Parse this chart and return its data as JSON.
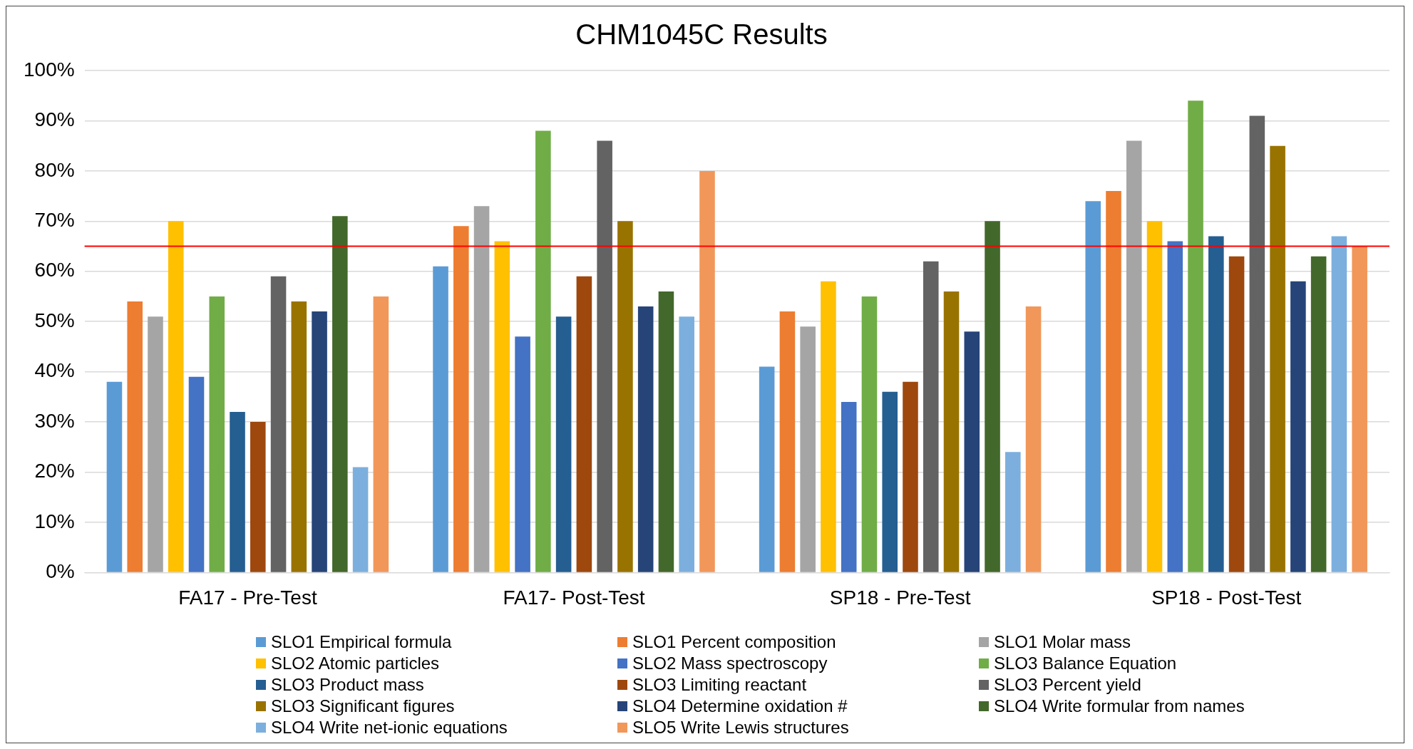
{
  "chart_data": {
    "type": "bar",
    "title": "CHM1045C Results",
    "categories": [
      "FA17 - Pre-Test",
      "FA17- Post-Test",
      "SP18 - Pre-Test",
      "SP18 - Post-Test"
    ],
    "ylim": [
      0,
      100
    ],
    "yticks": [
      {
        "value": 0,
        "label": "0%"
      },
      {
        "value": 10,
        "label": "10%"
      },
      {
        "value": 20,
        "label": "20%"
      },
      {
        "value": 30,
        "label": "30%"
      },
      {
        "value": 40,
        "label": "40%"
      },
      {
        "value": 50,
        "label": "50%"
      },
      {
        "value": 60,
        "label": "60%"
      },
      {
        "value": 70,
        "label": "70%"
      },
      {
        "value": 80,
        "label": "80%"
      },
      {
        "value": 90,
        "label": "90%"
      },
      {
        "value": 100,
        "label": "100%"
      }
    ],
    "grid": "y",
    "legend": "bottom",
    "series": [
      {
        "name": "SLO1 Empirical formula",
        "color": "#5b9bd5",
        "values": [
          38,
          61,
          41,
          74
        ]
      },
      {
        "name": "SLO1 Percent composition",
        "color": "#ed7d31",
        "values": [
          54,
          69,
          52,
          76
        ]
      },
      {
        "name": "SLO1 Molar mass",
        "color": "#a5a5a5",
        "values": [
          51,
          73,
          49,
          86
        ]
      },
      {
        "name": "SLO2 Atomic particles",
        "color": "#ffc000",
        "values": [
          70,
          66,
          58,
          70
        ]
      },
      {
        "name": "SLO2 Mass spectroscopy",
        "color": "#4472c4",
        "values": [
          39,
          47,
          34,
          66
        ]
      },
      {
        "name": "SLO3 Balance Equation",
        "color": "#70ad47",
        "values": [
          55,
          88,
          55,
          94
        ]
      },
      {
        "name": "SLO3 Product mass",
        "color": "#255e91",
        "values": [
          32,
          51,
          36,
          67
        ]
      },
      {
        "name": "SLO3 Limiting reactant",
        "color": "#9e480e",
        "values": [
          30,
          59,
          38,
          63
        ]
      },
      {
        "name": "SLO3 Percent yield",
        "color": "#636363",
        "values": [
          59,
          86,
          62,
          91
        ]
      },
      {
        "name": "SLO3 Significant figures",
        "color": "#997300",
        "values": [
          54,
          70,
          56,
          85
        ]
      },
      {
        "name": "SLO4 Determine oxidation #",
        "color": "#264478",
        "values": [
          52,
          53,
          48,
          58
        ]
      },
      {
        "name": "SLO4 Write formular from names",
        "color": "#43682b",
        "values": [
          71,
          56,
          70,
          63
        ]
      },
      {
        "name": "SLO4 Write net-ionic equations",
        "color": "#7cafdd",
        "values": [
          21,
          51,
          24,
          67
        ]
      },
      {
        "name": "SLO5 Write Lewis structures",
        "color": "#f1975a",
        "values": [
          55,
          80,
          53,
          65
        ]
      }
    ],
    "ref_lines": [
      {
        "axis": "y",
        "value": 65,
        "color": "#ff0000"
      }
    ]
  }
}
